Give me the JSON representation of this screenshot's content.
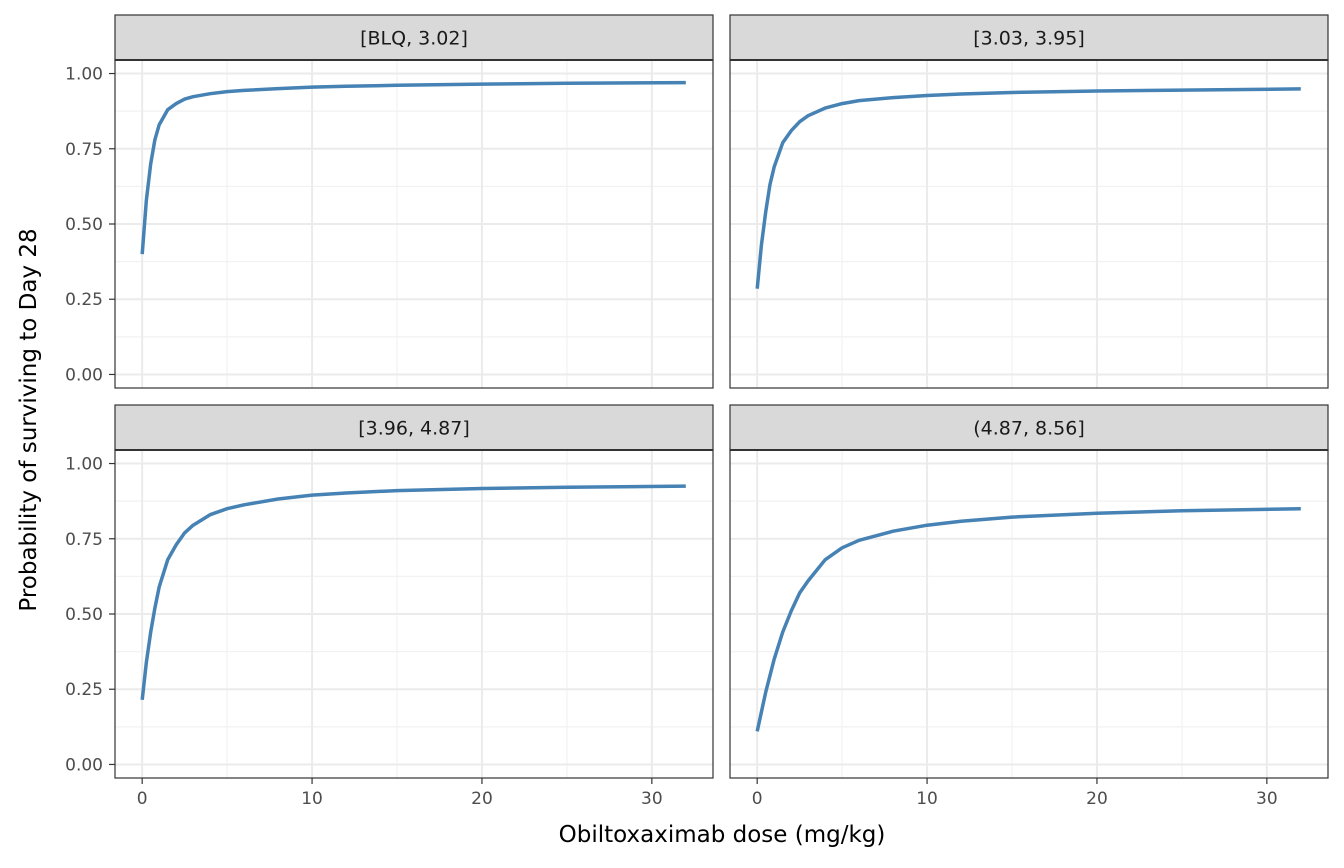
{
  "chart_data": {
    "type": "line",
    "layout": "facet-grid-2x2",
    "title": "",
    "xlabel": "Obiltoxaximab dose (mg/kg)",
    "ylabel": "Probability of surviving to Day 28",
    "xlim": [
      -1.6,
      33.6
    ],
    "ylim": [
      -0.045,
      1.045
    ],
    "x_ticks": [
      0,
      10,
      20,
      30
    ],
    "x_tick_labels": [
      "0",
      "10",
      "20",
      "30"
    ],
    "y_ticks": [
      0,
      0.25,
      0.5,
      0.75,
      1.0
    ],
    "y_tick_labels": [
      "0.00",
      "0.25",
      "0.50",
      "0.75",
      "1.00"
    ],
    "grid": true,
    "line_color": "#4682B4",
    "panels": [
      {
        "strip": "[BLQ, 3.02]",
        "x": [
          0,
          0.25,
          0.5,
          0.75,
          1,
          1.5,
          2,
          2.5,
          3,
          4,
          5,
          6,
          8,
          10,
          12,
          15,
          20,
          25,
          32
        ],
        "y": [
          0.4,
          0.58,
          0.7,
          0.78,
          0.83,
          0.88,
          0.9,
          0.915,
          0.923,
          0.933,
          0.94,
          0.944,
          0.95,
          0.955,
          0.958,
          0.961,
          0.965,
          0.968,
          0.97
        ]
      },
      {
        "strip": "[3.03, 3.95]",
        "x": [
          0,
          0.25,
          0.5,
          0.75,
          1,
          1.5,
          2,
          2.5,
          3,
          4,
          5,
          6,
          8,
          10,
          12,
          15,
          20,
          25,
          32
        ],
        "y": [
          0.285,
          0.43,
          0.54,
          0.63,
          0.69,
          0.77,
          0.81,
          0.84,
          0.86,
          0.885,
          0.9,
          0.91,
          0.92,
          0.927,
          0.932,
          0.937,
          0.942,
          0.945,
          0.949
        ]
      },
      {
        "strip": "[3.96, 4.87]",
        "x": [
          0,
          0.25,
          0.5,
          0.75,
          1,
          1.5,
          2,
          2.5,
          3,
          4,
          5,
          6,
          8,
          10,
          12,
          15,
          20,
          25,
          32
        ],
        "y": [
          0.215,
          0.34,
          0.44,
          0.52,
          0.59,
          0.68,
          0.73,
          0.77,
          0.795,
          0.83,
          0.85,
          0.863,
          0.882,
          0.895,
          0.902,
          0.91,
          0.917,
          0.921,
          0.925
        ]
      },
      {
        "strip": "(4.87, 8.56]",
        "x": [
          0,
          0.5,
          1,
          1.5,
          2,
          2.5,
          3,
          4,
          5,
          6,
          8,
          10,
          12,
          15,
          20,
          25,
          32
        ],
        "y": [
          0.11,
          0.24,
          0.35,
          0.44,
          0.51,
          0.57,
          0.61,
          0.68,
          0.72,
          0.745,
          0.775,
          0.795,
          0.808,
          0.822,
          0.835,
          0.843,
          0.85
        ]
      }
    ]
  }
}
